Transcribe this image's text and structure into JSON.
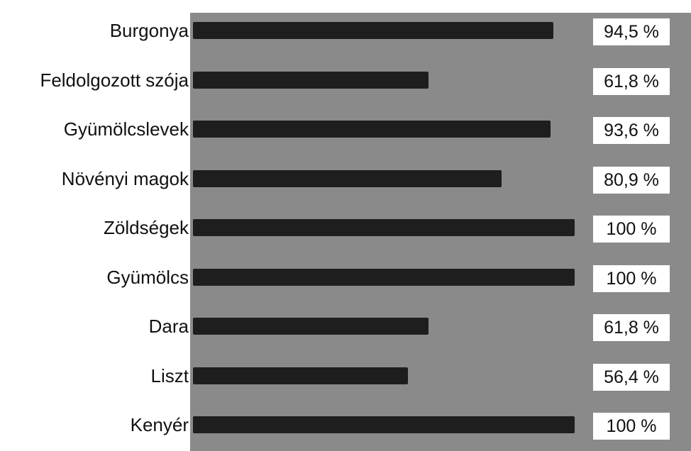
{
  "chart_data": {
    "type": "bar",
    "orientation": "horizontal",
    "categories": [
      "Burgonya",
      "Feldolgozott szója",
      "Gyümölcslevek",
      "Növényi magok",
      "Zöldségek",
      "Gyümölcs",
      "Dara",
      "Liszt",
      "Kenyér"
    ],
    "values": [
      94.5,
      61.8,
      93.6,
      80.9,
      100,
      100,
      61.8,
      56.4,
      100
    ],
    "value_labels": [
      "94,5 %",
      "61,8 %",
      "93,6 %",
      "80,9 %",
      "100 %",
      "100 %",
      "61,8 %",
      "56,4 %",
      "100 %"
    ],
    "xlim": [
      0,
      100
    ],
    "grid": false,
    "legend": "none",
    "colors": {
      "bar": "#1e1e1e",
      "plot_background": "#8a8a8a",
      "page_background": "#ffffff",
      "label_box": "#ffffff"
    }
  }
}
